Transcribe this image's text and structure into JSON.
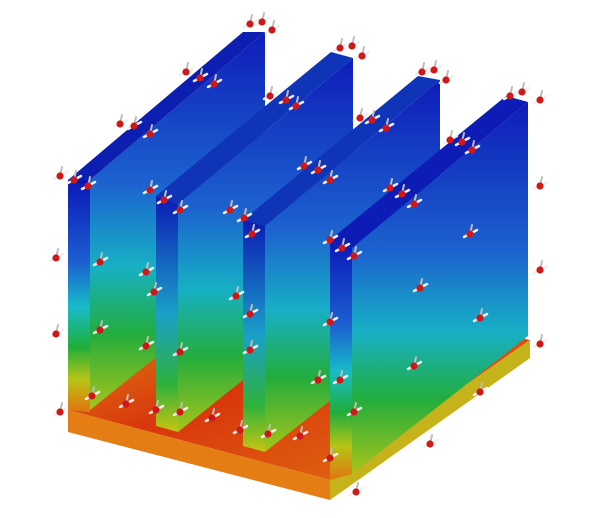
{
  "figure": {
    "subject": "heat-sink-fins-temperature-field",
    "colormap": [
      "#0b14b4",
      "#1a5fd0",
      "#17b9c9",
      "#22b23a",
      "#b8c414",
      "#e06a10",
      "#d21a08"
    ],
    "fin_count": 4,
    "base_color": "#d8420c",
    "marker_color": "#d01818",
    "arrow_color": "#f0f0f0"
  }
}
